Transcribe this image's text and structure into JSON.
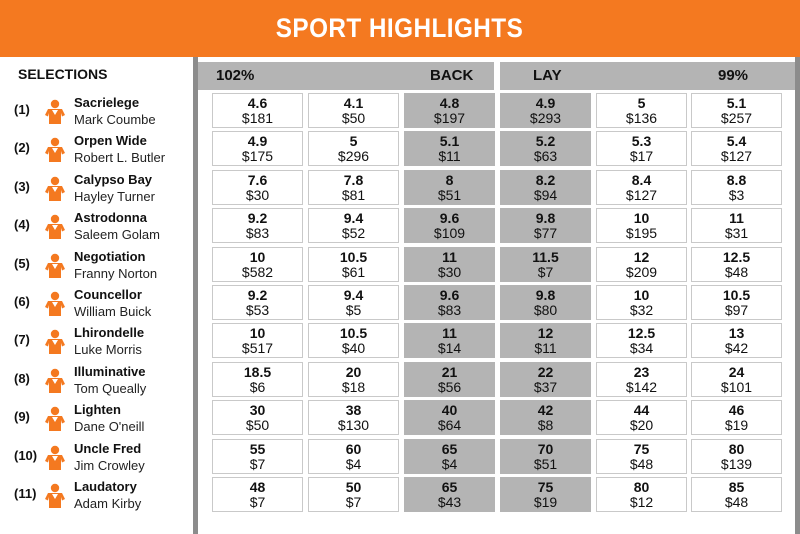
{
  "header": {
    "title": "SPORT HIGHLIGHTS"
  },
  "columns": {
    "selections": "SELECTIONS",
    "back_percent": "102%",
    "back": "BACK",
    "lay": "LAY",
    "lay_percent": "99%"
  },
  "colors": {
    "accent": "#f47920",
    "highlight": "#b4b4b4",
    "frame": "#8c8c8c"
  },
  "icon": "jockey-silks-icon",
  "selections": [
    {
      "num": "(1)",
      "horse": "Sacrielege",
      "jockey": "Mark Coumbe",
      "prices": [
        {
          "odds": "4.6",
          "stake": "$181"
        },
        {
          "odds": "4.1",
          "stake": "$50"
        },
        {
          "odds": "4.8",
          "stake": "$197"
        },
        {
          "odds": "4.9",
          "stake": "$293"
        },
        {
          "odds": "5",
          "stake": "$136"
        },
        {
          "odds": "5.1",
          "stake": "$257"
        }
      ]
    },
    {
      "num": "(2)",
      "horse": "Orpen Wide",
      "jockey": "Robert L. Butler",
      "prices": [
        {
          "odds": "4.9",
          "stake": "$175"
        },
        {
          "odds": "5",
          "stake": "$296"
        },
        {
          "odds": "5.1",
          "stake": "$11"
        },
        {
          "odds": "5.2",
          "stake": "$63"
        },
        {
          "odds": "5.3",
          "stake": "$17"
        },
        {
          "odds": "5.4",
          "stake": "$127"
        }
      ]
    },
    {
      "num": "(3)",
      "horse": "Calypso Bay",
      "jockey": "Hayley Turner",
      "prices": [
        {
          "odds": "7.6",
          "stake": "$30"
        },
        {
          "odds": "7.8",
          "stake": "$81"
        },
        {
          "odds": "8",
          "stake": "$51"
        },
        {
          "odds": "8.2",
          "stake": "$94"
        },
        {
          "odds": "8.4",
          "stake": "$127"
        },
        {
          "odds": "8.8",
          "stake": "$3"
        }
      ]
    },
    {
      "num": "(4)",
      "horse": "Astrodonna",
      "jockey": "Saleem Golam",
      "prices": [
        {
          "odds": "9.2",
          "stake": "$83"
        },
        {
          "odds": "9.4",
          "stake": "$52"
        },
        {
          "odds": "9.6",
          "stake": "$109"
        },
        {
          "odds": "9.8",
          "stake": "$77"
        },
        {
          "odds": "10",
          "stake": "$195"
        },
        {
          "odds": "11",
          "stake": "$31"
        }
      ]
    },
    {
      "num": "(5)",
      "horse": "Negotiation",
      "jockey": "Franny Norton",
      "prices": [
        {
          "odds": "10",
          "stake": "$582"
        },
        {
          "odds": "10.5",
          "stake": "$61"
        },
        {
          "odds": "11",
          "stake": "$30"
        },
        {
          "odds": "11.5",
          "stake": "$7"
        },
        {
          "odds": "12",
          "stake": "$209"
        },
        {
          "odds": "12.5",
          "stake": "$48"
        }
      ]
    },
    {
      "num": "(6)",
      "horse": "Councellor",
      "jockey": "William Buick",
      "prices": [
        {
          "odds": "9.2",
          "stake": "$53"
        },
        {
          "odds": "9.4",
          "stake": "$5"
        },
        {
          "odds": "9.6",
          "stake": "$83"
        },
        {
          "odds": "9.8",
          "stake": "$80"
        },
        {
          "odds": "10",
          "stake": "$32"
        },
        {
          "odds": "10.5",
          "stake": "$97"
        }
      ]
    },
    {
      "num": "(7)",
      "horse": "Lhirondelle",
      "jockey": "Luke Morris",
      "prices": [
        {
          "odds": "10",
          "stake": "$517"
        },
        {
          "odds": "10.5",
          "stake": "$40"
        },
        {
          "odds": "11",
          "stake": "$14"
        },
        {
          "odds": "12",
          "stake": "$11"
        },
        {
          "odds": "12.5",
          "stake": "$34"
        },
        {
          "odds": "13",
          "stake": "$42"
        }
      ]
    },
    {
      "num": "(8)",
      "horse": "Illuminative",
      "jockey": "Tom Queally",
      "prices": [
        {
          "odds": "18.5",
          "stake": "$6"
        },
        {
          "odds": "20",
          "stake": "$18"
        },
        {
          "odds": "21",
          "stake": "$56"
        },
        {
          "odds": "22",
          "stake": "$37"
        },
        {
          "odds": "23",
          "stake": "$142"
        },
        {
          "odds": "24",
          "stake": "$101"
        }
      ]
    },
    {
      "num": "(9)",
      "horse": "Lighten",
      "jockey": "Dane O'neill",
      "prices": [
        {
          "odds": "30",
          "stake": "$50"
        },
        {
          "odds": "38",
          "stake": "$130"
        },
        {
          "odds": "40",
          "stake": "$64"
        },
        {
          "odds": "42",
          "stake": "$8"
        },
        {
          "odds": "44",
          "stake": "$20"
        },
        {
          "odds": "46",
          "stake": "$19"
        }
      ]
    },
    {
      "num": "(10)",
      "horse": "Uncle Fred",
      "jockey": "Jim Crowley",
      "prices": [
        {
          "odds": "55",
          "stake": "$7"
        },
        {
          "odds": "60",
          "stake": "$4"
        },
        {
          "odds": "65",
          "stake": "$4"
        },
        {
          "odds": "70",
          "stake": "$51"
        },
        {
          "odds": "75",
          "stake": "$48"
        },
        {
          "odds": "80",
          "stake": "$139"
        }
      ]
    },
    {
      "num": "(11)",
      "horse": "Laudatory",
      "jockey": "Adam Kirby",
      "prices": [
        {
          "odds": "48",
          "stake": "$7"
        },
        {
          "odds": "50",
          "stake": "$7"
        },
        {
          "odds": "65",
          "stake": "$43"
        },
        {
          "odds": "75",
          "stake": "$19"
        },
        {
          "odds": "80",
          "stake": "$12"
        },
        {
          "odds": "85",
          "stake": "$48"
        }
      ]
    }
  ]
}
